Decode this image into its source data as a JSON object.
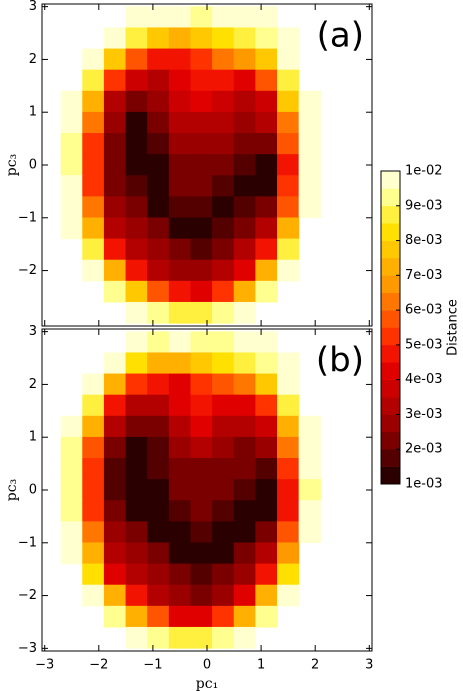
{
  "chart_data": [
    {
      "type": "contour",
      "label": "(a)",
      "ylabel": "pc₃",
      "show_xticklabels": false,
      "xlim": [
        -3.05,
        3.05
      ],
      "ylim": [
        -3.05,
        3.05
      ],
      "xticks": [
        {
          "value": -3,
          "label": "−3"
        },
        {
          "value": -2,
          "label": "−2"
        },
        {
          "value": -1,
          "label": "−1"
        },
        0,
        1,
        2,
        3
      ],
      "yticks": [
        {
          "value": -2,
          "label": "−2"
        },
        {
          "value": -1,
          "label": "−1"
        },
        0,
        1,
        2,
        3
      ],
      "x": [
        -2.5,
        -2.1,
        -1.7,
        -1.3,
        -0.9,
        -0.5,
        -0.1,
        0.3,
        0.7,
        1.1,
        1.5,
        1.9
      ],
      "y": [
        2.8,
        2.4,
        2.0,
        1.6,
        1.2,
        0.8,
        0.4,
        0.0,
        -0.4,
        -0.8,
        -1.2,
        -1.6,
        -2.0,
        -2.4,
        -2.8
      ],
      "z": [
        [
          null,
          null,
          null,
          0.0098,
          0.0095,
          0.0096,
          0.0093,
          0.0095,
          0.0097,
          0.0098,
          null,
          null
        ],
        [
          null,
          null,
          0.0096,
          0.0085,
          0.0076,
          0.0072,
          0.0078,
          0.0082,
          0.0086,
          0.0094,
          0.0098,
          null
        ],
        [
          null,
          0.0096,
          0.0075,
          0.0055,
          0.0048,
          0.0046,
          0.0052,
          0.006,
          0.0065,
          0.0078,
          0.0096,
          null
        ],
        [
          null,
          0.0088,
          0.0052,
          0.0036,
          0.0032,
          0.0042,
          0.0048,
          0.0045,
          0.0042,
          0.0055,
          0.0088,
          null
        ],
        [
          0.0097,
          0.0072,
          0.0034,
          0.0024,
          0.0026,
          0.0036,
          0.0044,
          0.0038,
          0.0032,
          0.0038,
          0.0075,
          0.0098
        ],
        [
          0.0095,
          0.006,
          0.0026,
          0.0014,
          0.0022,
          0.003,
          0.0034,
          0.003,
          0.0026,
          0.003,
          0.0062,
          0.0096
        ],
        [
          0.0094,
          0.0054,
          0.0022,
          0.0013,
          0.0018,
          0.0026,
          0.0028,
          0.0026,
          0.0022,
          0.0022,
          0.0056,
          0.0096
        ],
        [
          0.0094,
          0.0052,
          0.0022,
          0.0013,
          0.0014,
          0.0024,
          0.0024,
          0.0022,
          0.0018,
          0.0014,
          0.0048,
          0.0095
        ],
        [
          0.0095,
          0.0054,
          0.0024,
          0.0016,
          0.0013,
          0.002,
          0.0022,
          0.0018,
          0.0014,
          0.0014,
          0.005,
          0.0096
        ],
        [
          0.0096,
          0.0062,
          0.0028,
          0.0022,
          0.0014,
          0.0016,
          0.0018,
          0.0014,
          0.0016,
          0.0024,
          0.0058,
          0.0098
        ],
        [
          0.0098,
          0.0072,
          0.0034,
          0.0028,
          0.0022,
          0.0014,
          0.0013,
          0.0016,
          0.0024,
          0.0034,
          0.007,
          null
        ],
        [
          null,
          0.0086,
          0.0046,
          0.0034,
          0.0028,
          0.0022,
          0.0018,
          0.0024,
          0.003,
          0.0048,
          0.0086,
          null
        ],
        [
          null,
          0.0096,
          0.0072,
          0.0048,
          0.0034,
          0.0028,
          0.0026,
          0.003,
          0.0042,
          0.0074,
          0.0097,
          null
        ],
        [
          null,
          null,
          0.0094,
          0.0076,
          0.0058,
          0.0046,
          0.0044,
          0.0052,
          0.0074,
          0.0094,
          null,
          null
        ],
        [
          null,
          null,
          null,
          0.0098,
          0.0093,
          0.0088,
          0.0088,
          0.0092,
          0.0098,
          null,
          null,
          null
        ]
      ],
      "colorbar": {
        "label": "Distance",
        "lim": [
          0.001,
          0.01
        ],
        "levels": [
          0.001,
          0.0015,
          0.002,
          0.0025,
          0.003,
          0.0035,
          0.004,
          0.0045,
          0.005,
          0.0055,
          0.006,
          0.0065,
          0.007,
          0.0075,
          0.008,
          0.0085,
          0.009,
          0.0095,
          0.01
        ],
        "colors": [
          "#2b0000",
          "#550000",
          "#7a0000",
          "#9a0000",
          "#b30000",
          "#cc0000",
          "#e00000",
          "#f21400",
          "#ff3300",
          "#ff5500",
          "#ff7700",
          "#ff9900",
          "#ffb000",
          "#ffc800",
          "#ffe000",
          "#fff040",
          "#ffff90",
          "#ffffd0"
        ],
        "ticks": [
          {
            "value": 0.001,
            "label": "1e-03"
          },
          {
            "value": 0.002,
            "label": "2e-03"
          },
          {
            "value": 0.003,
            "label": "3e-03"
          },
          {
            "value": 0.004,
            "label": "4e-03"
          },
          {
            "value": 0.005,
            "label": "5e-03"
          },
          {
            "value": 0.006,
            "label": "6e-03"
          },
          {
            "value": 0.007,
            "label": "7e-03"
          },
          {
            "value": 0.008,
            "label": "8e-03"
          },
          {
            "value": 0.009,
            "label": "9e-03"
          },
          {
            "value": 0.01,
            "label": "1e-02"
          }
        ]
      }
    },
    {
      "type": "contour",
      "label": "(b)",
      "ylabel": "pc₃",
      "xlabel": "pc₁",
      "show_xticklabels": true,
      "xlim": [
        -3.05,
        3.05
      ],
      "ylim": [
        -3.05,
        3.05
      ],
      "xticks": [
        {
          "value": -3,
          "label": "−3"
        },
        {
          "value": -2,
          "label": "−2"
        },
        {
          "value": -1,
          "label": "−1"
        },
        0,
        1,
        2,
        3
      ],
      "yticks": [
        {
          "value": -3,
          "label": "−3"
        },
        {
          "value": -2,
          "label": "−2"
        },
        {
          "value": -1,
          "label": "−1"
        },
        0,
        1,
        2,
        3
      ],
      "x": [
        -2.5,
        -2.1,
        -1.7,
        -1.3,
        -0.9,
        -0.5,
        -0.1,
        0.3,
        0.7,
        1.1,
        1.5,
        1.9
      ],
      "y": [
        2.8,
        2.4,
        2.0,
        1.6,
        1.2,
        0.8,
        0.4,
        0.0,
        -0.4,
        -0.8,
        -1.2,
        -1.6,
        -2.0,
        -2.4,
        -2.8
      ],
      "z": [
        [
          null,
          null,
          null,
          0.0097,
          0.0094,
          0.0095,
          0.0092,
          0.0094,
          0.0096,
          0.0098,
          null,
          null
        ],
        [
          null,
          null,
          0.0095,
          0.0084,
          0.0074,
          0.007,
          0.0076,
          0.008,
          0.0085,
          0.0093,
          0.0098,
          null
        ],
        [
          null,
          0.0095,
          0.0072,
          0.0052,
          0.0046,
          0.0044,
          0.005,
          0.0058,
          0.0062,
          0.0076,
          0.0095,
          null
        ],
        [
          null,
          0.0086,
          0.0048,
          0.0034,
          0.003,
          0.004,
          0.0046,
          0.0042,
          0.004,
          0.0052,
          0.0086,
          null
        ],
        [
          0.0096,
          0.007,
          0.0032,
          0.0022,
          0.0024,
          0.0034,
          0.004,
          0.0034,
          0.003,
          0.0036,
          0.0072,
          0.0098
        ],
        [
          0.0094,
          0.0058,
          0.0024,
          0.0013,
          0.0018,
          0.0028,
          0.003,
          0.0026,
          0.0022,
          0.0028,
          0.006,
          0.0096
        ],
        [
          0.0093,
          0.0052,
          0.0018,
          0.0012,
          0.0016,
          0.0022,
          0.0024,
          0.0022,
          0.002,
          0.0018,
          0.0054,
          0.0095
        ],
        [
          0.0093,
          0.005,
          0.0018,
          0.0012,
          0.0013,
          0.002,
          0.0022,
          0.002,
          0.0016,
          0.0013,
          0.0046,
          0.0094
        ],
        [
          0.0094,
          0.0052,
          0.0022,
          0.0014,
          0.0012,
          0.0018,
          0.002,
          0.0016,
          0.0013,
          0.0013,
          0.0048,
          0.0095
        ],
        [
          0.0095,
          0.006,
          0.0026,
          0.002,
          0.0013,
          0.0014,
          0.0016,
          0.0013,
          0.0014,
          0.0022,
          0.0056,
          0.0097
        ],
        [
          0.0097,
          0.007,
          0.0032,
          0.0026,
          0.002,
          0.0013,
          0.0012,
          0.0014,
          0.0022,
          0.0032,
          0.0068,
          null
        ],
        [
          null,
          0.0084,
          0.0044,
          0.0032,
          0.0026,
          0.002,
          0.0016,
          0.0022,
          0.0028,
          0.0046,
          0.0084,
          null
        ],
        [
          null,
          0.0095,
          0.007,
          0.0046,
          0.0032,
          0.0026,
          0.0024,
          0.0028,
          0.004,
          0.0072,
          0.0096,
          null
        ],
        [
          null,
          null,
          0.0093,
          0.0074,
          0.0056,
          0.0044,
          0.0042,
          0.005,
          0.0072,
          0.0093,
          null,
          null
        ],
        [
          null,
          null,
          null,
          0.0097,
          0.0092,
          0.0086,
          0.0086,
          0.009,
          0.0097,
          null,
          null,
          null
        ]
      ]
    }
  ]
}
